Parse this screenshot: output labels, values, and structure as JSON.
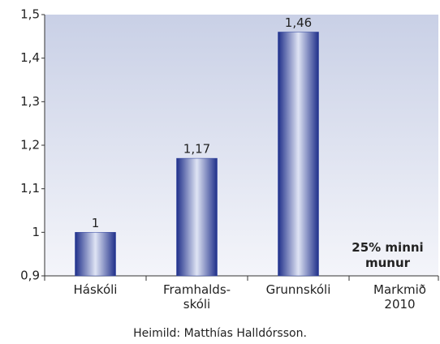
{
  "chart_data": {
    "type": "bar",
    "categories": [
      "Háskóli",
      "Framhalds-\nskóli",
      "Grunnskóli",
      "Markmið\n2010"
    ],
    "values": [
      1,
      1.17,
      1.46,
      null
    ],
    "value_labels": [
      "1",
      "1,17",
      "1,46",
      null
    ],
    "color": "#2b3f9c",
    "ylim": [
      0.9,
      1.5
    ],
    "yticks": [
      {
        "value": 0.9,
        "label": "0,9"
      },
      1,
      {
        "value": 1.1,
        "label": "1,1"
      },
      {
        "value": 1.2,
        "label": "1,2"
      },
      {
        "value": 1.3,
        "label": "1,3"
      },
      {
        "value": 1.4,
        "label": "1,4"
      },
      {
        "value": 1.5,
        "label": "1,5"
      }
    ],
    "annotation": "25% minni\nmunur",
    "source": "Heimild: Matthías Halldórsson."
  }
}
